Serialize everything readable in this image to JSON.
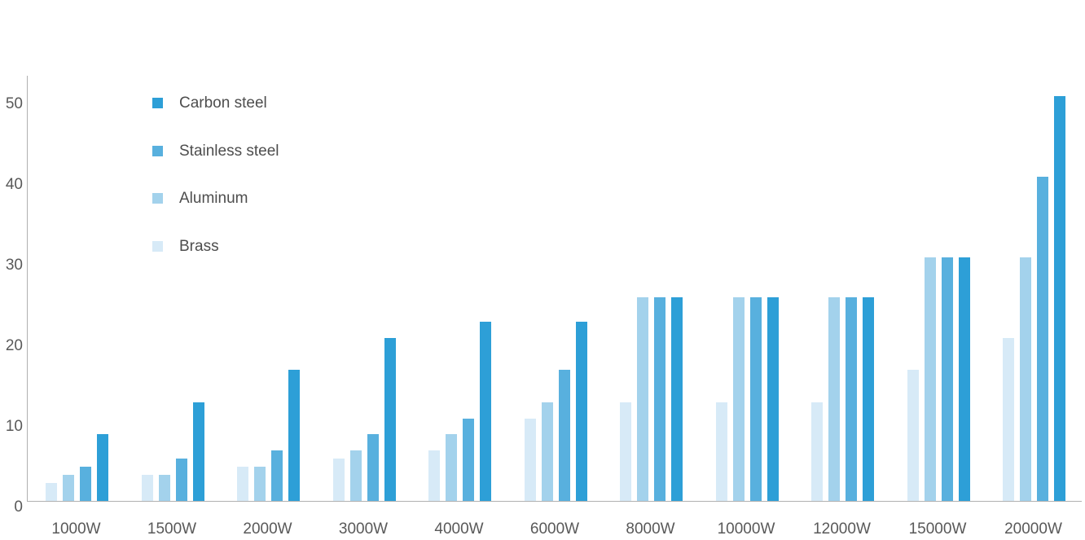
{
  "chart_data": {
    "type": "bar",
    "title": "",
    "xlabel": "",
    "ylabel": "",
    "grid": false,
    "legend_position": "upper-left-inside",
    "categories": [
      "1000W",
      "1500W",
      "2000W",
      "3000W",
      "4000W",
      "6000W",
      "8000W",
      "10000W",
      "12000W",
      "15000W",
      "20000W"
    ],
    "series": [
      {
        "name": "Brass",
        "color": "#d7eaf7",
        "values": [
          3,
          4,
          5,
          6,
          7,
          11,
          13,
          13,
          13,
          17,
          21
        ]
      },
      {
        "name": "Aluminum",
        "color": "#a3d2ec",
        "values": [
          4,
          4,
          5,
          7,
          9,
          13,
          26,
          26,
          26,
          31,
          31
        ]
      },
      {
        "name": "Stainless steel",
        "color": "#58b0de",
        "values": [
          5,
          6,
          7,
          9,
          11,
          17,
          26,
          26,
          26,
          31,
          41
        ]
      },
      {
        "name": "Carbon steel",
        "color": "#2d9fd7",
        "values": [
          9,
          13,
          17,
          21,
          23,
          23,
          26,
          26,
          26,
          31,
          51
        ]
      }
    ],
    "legend": [
      "Carbon steel",
      "Stainless steel",
      "Aluminum",
      "Brass"
    ],
    "y_ticks": [
      0,
      10,
      20,
      30,
      40,
      50
    ],
    "ylim": [
      0,
      52.5
    ]
  },
  "colors": {
    "background": "#ffffff",
    "axis_line": "#b0b0b0",
    "tick_text": "#595959",
    "legend_text": "#4d4d4d"
  }
}
